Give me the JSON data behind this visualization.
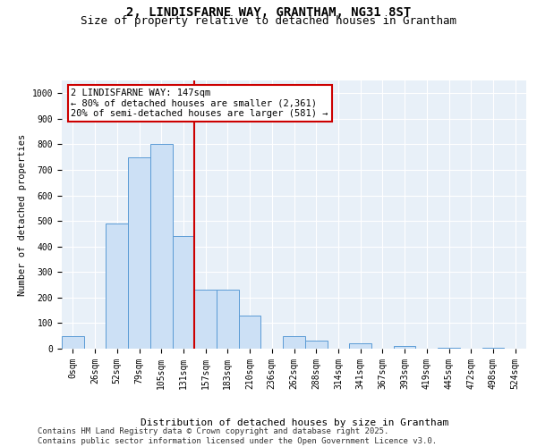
{
  "title_line1": "2, LINDISFARNE WAY, GRANTHAM, NG31 8ST",
  "title_line2": "Size of property relative to detached houses in Grantham",
  "xlabel": "Distribution of detached houses by size in Grantham",
  "ylabel": "Number of detached properties",
  "bar_color": "#cce0f5",
  "bar_edge_color": "#5b9bd5",
  "bg_color": "#e8f0f8",
  "grid_color": "#ffffff",
  "annotation_box_color": "#cc0000",
  "vline_color": "#cc0000",
  "categories": [
    "0sqm",
    "26sqm",
    "52sqm",
    "79sqm",
    "105sqm",
    "131sqm",
    "157sqm",
    "183sqm",
    "210sqm",
    "236sqm",
    "262sqm",
    "288sqm",
    "314sqm",
    "341sqm",
    "367sqm",
    "393sqm",
    "419sqm",
    "445sqm",
    "472sqm",
    "498sqm",
    "524sqm"
  ],
  "values": [
    50,
    0,
    490,
    750,
    800,
    440,
    230,
    230,
    130,
    0,
    50,
    30,
    0,
    20,
    0,
    10,
    0,
    5,
    0,
    5,
    0
  ],
  "vline_x": 5.5,
  "annotation_text": "2 LINDISFARNE WAY: 147sqm\n← 80% of detached houses are smaller (2,361)\n20% of semi-detached houses are larger (581) →",
  "ylim": [
    0,
    1050
  ],
  "yticks": [
    0,
    100,
    200,
    300,
    400,
    500,
    600,
    700,
    800,
    900,
    1000
  ],
  "footer_text": "Contains HM Land Registry data © Crown copyright and database right 2025.\nContains public sector information licensed under the Open Government Licence v3.0.",
  "title_fontsize": 10,
  "subtitle_fontsize": 9,
  "annotation_fontsize": 7.5,
  "footer_fontsize": 6.5,
  "tick_fontsize": 7,
  "ylabel_fontsize": 7.5,
  "xlabel_fontsize": 8
}
